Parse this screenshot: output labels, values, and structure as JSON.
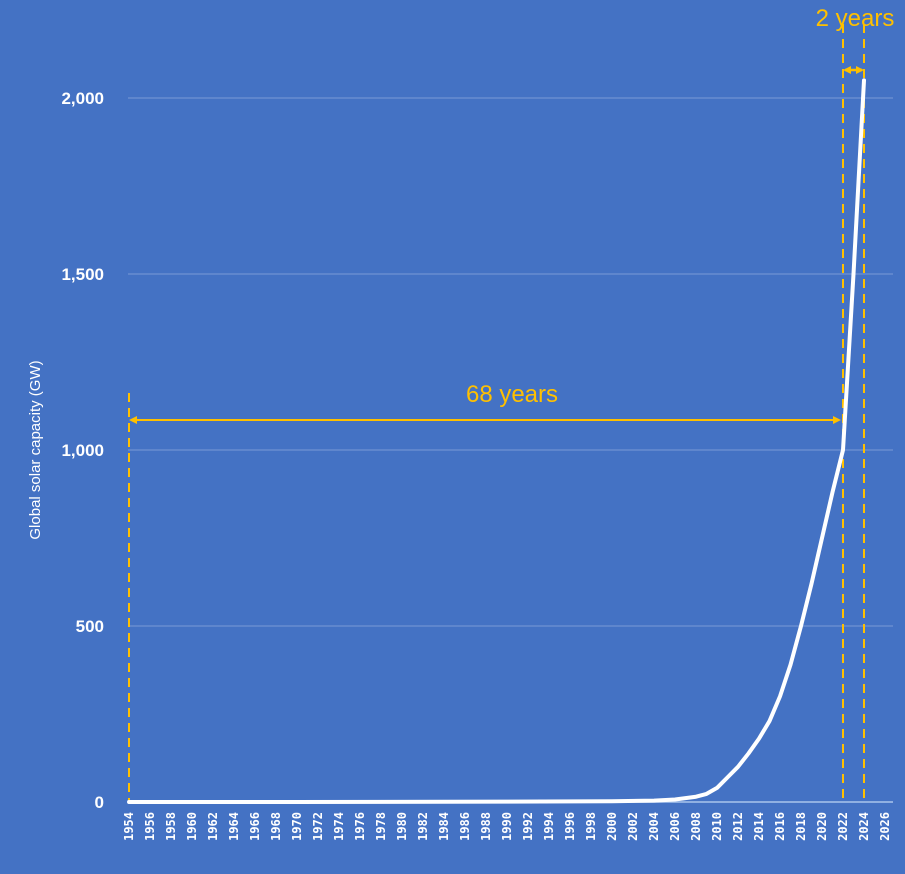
{
  "chart_data": {
    "type": "line",
    "title": "",
    "xlabel": "",
    "ylabel": "Global solar capacity (GW)",
    "ylim": [
      0,
      2100
    ],
    "xlim": [
      1954,
      2026
    ],
    "y_ticks": [
      0,
      500,
      1000,
      1500,
      2000
    ],
    "y_tick_labels": [
      "0",
      "500",
      "1,000",
      "1,500",
      "2,000"
    ],
    "x_ticks": [
      1954,
      1956,
      1958,
      1960,
      1962,
      1964,
      1966,
      1968,
      1970,
      1972,
      1974,
      1976,
      1978,
      1980,
      1982,
      1984,
      1986,
      1988,
      1990,
      1992,
      1994,
      1996,
      1998,
      2000,
      2002,
      2004,
      2006,
      2008,
      2010,
      2012,
      2014,
      2016,
      2018,
      2020,
      2022,
      2024,
      2026
    ],
    "grid": "horizontal",
    "legend": "none",
    "series": [
      {
        "name": "Global solar capacity",
        "color": "#ffffff",
        "x": [
          1954,
          1970,
          1990,
          2000,
          2004,
          2006,
          2008,
          2009,
          2010,
          2011,
          2012,
          2013,
          2014,
          2015,
          2016,
          2017,
          2018,
          2019,
          2020,
          2021,
          2022,
          2023,
          2024
        ],
        "values": [
          0,
          0,
          1,
          2,
          4,
          7,
          15,
          23,
          40,
          70,
          100,
          138,
          180,
          230,
          300,
          390,
          500,
          620,
          750,
          880,
          1000,
          1500,
          2050
        ]
      }
    ],
    "annotations": [
      {
        "text": "68 years",
        "from": 1954,
        "to": 2022,
        "y": 1090,
        "color": "#ffc000",
        "style": "double-arrow"
      },
      {
        "text": "2 years",
        "from": 2022,
        "to": 2024,
        "y": 2050,
        "color": "#ffc000",
        "style": "double-arrow"
      }
    ],
    "vertical_markers": [
      {
        "x": 1954,
        "style": "dashed",
        "color": "#ffc000"
      },
      {
        "x": 2022,
        "style": "dashed",
        "color": "#ffc000"
      },
      {
        "x": 2024,
        "style": "dashed",
        "color": "#ffc000"
      }
    ]
  },
  "colors": {
    "background": "#4472c4",
    "line": "#ffffff",
    "annotation": "#ffc000",
    "grid": "#7a9ad6"
  }
}
